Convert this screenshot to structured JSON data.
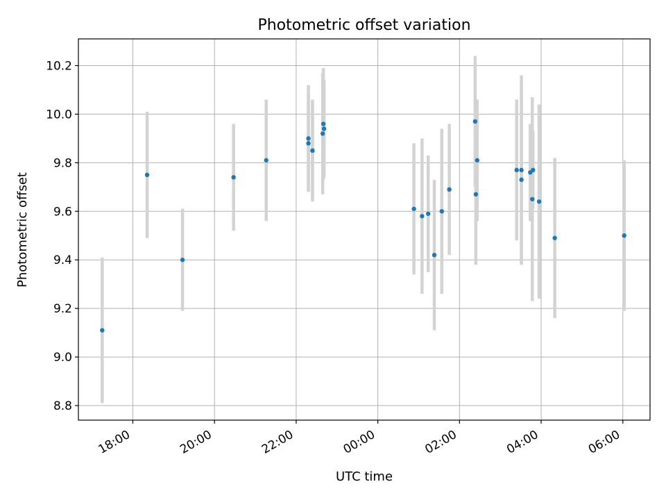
{
  "chart_data": {
    "type": "scatter",
    "title": "Photometric offset variation",
    "xlabel": "UTC time",
    "ylabel": "Photometric offset",
    "x_axis_type": "time",
    "xlim": [
      "2024-01-01 16:40",
      "2024-01-02 06:40"
    ],
    "ylim": [
      8.74,
      10.31
    ],
    "x_ticks": [
      {
        "t": "2024-01-01 18:00",
        "label": "18:00"
      },
      {
        "t": "2024-01-01 20:00",
        "label": "20:00"
      },
      {
        "t": "2024-01-01 22:00",
        "label": "22:00"
      },
      {
        "t": "2024-01-02 00:00",
        "label": "00:00"
      },
      {
        "t": "2024-01-02 02:00",
        "label": "02:00"
      },
      {
        "t": "2024-01-02 04:00",
        "label": "04:00"
      },
      {
        "t": "2024-01-02 06:00",
        "label": "06:00"
      }
    ],
    "y_ticks": [
      8.8,
      9.0,
      9.2,
      9.4,
      9.6,
      9.8,
      10.0,
      10.2
    ],
    "y_tick_labels": [
      "8.8",
      "9.0",
      "9.2",
      "9.4",
      "9.6",
      "9.8",
      "10.0",
      "10.2"
    ],
    "grid": true,
    "point_color": "#1f77b4",
    "errorbar_color": "#d3d3d3",
    "points": [
      {
        "t": "2024-01-01 17:15",
        "y": 9.11,
        "err": 0.3
      },
      {
        "t": "2024-01-01 18:21",
        "y": 9.75,
        "err": 0.26
      },
      {
        "t": "2024-01-01 19:13",
        "y": 9.4,
        "err": 0.21
      },
      {
        "t": "2024-01-01 20:28",
        "y": 9.74,
        "err": 0.22
      },
      {
        "t": "2024-01-01 21:16",
        "y": 9.81,
        "err": 0.25
      },
      {
        "t": "2024-01-01 22:18",
        "y": 9.9,
        "err": 0.22
      },
      {
        "t": "2024-01-01 22:18",
        "y": 9.88,
        "err": 0.2
      },
      {
        "t": "2024-01-01 22:24",
        "y": 9.85,
        "err": 0.21
      },
      {
        "t": "2024-01-01 22:24",
        "y": 9.85,
        "err": 0.2
      },
      {
        "t": "2024-01-01 22:39",
        "y": 9.92,
        "err": 0.25
      },
      {
        "t": "2024-01-01 22:40",
        "y": 9.96,
        "err": 0.23
      },
      {
        "t": "2024-01-01 22:41",
        "y": 9.94,
        "err": 0.2
      },
      {
        "t": "2024-01-02 00:53",
        "y": 9.61,
        "err": 0.27
      },
      {
        "t": "2024-01-02 01:05",
        "y": 9.58,
        "err": 0.32
      },
      {
        "t": "2024-01-02 01:14",
        "y": 9.59,
        "err": 0.24
      },
      {
        "t": "2024-01-02 01:23",
        "y": 9.42,
        "err": 0.31
      },
      {
        "t": "2024-01-02 01:34",
        "y": 9.6,
        "err": 0.34
      },
      {
        "t": "2024-01-02 01:45",
        "y": 9.69,
        "err": 0.27
      },
      {
        "t": "2024-01-02 02:23",
        "y": 9.97,
        "err": 0.27
      },
      {
        "t": "2024-01-02 02:26",
        "y": 9.81,
        "err": 0.25
      },
      {
        "t": "2024-01-02 02:24",
        "y": 9.67,
        "err": 0.29
      },
      {
        "t": "2024-01-02 03:24",
        "y": 9.77,
        "err": 0.29
      },
      {
        "t": "2024-01-02 03:31",
        "y": 9.77,
        "err": 0.39
      },
      {
        "t": "2024-01-02 03:31",
        "y": 9.73,
        "err": 0.35
      },
      {
        "t": "2024-01-02 03:44",
        "y": 9.76,
        "err": 0.2
      },
      {
        "t": "2024-01-02 03:47",
        "y": 9.65,
        "err": 0.42
      },
      {
        "t": "2024-01-02 03:48",
        "y": 9.77,
        "err": 0.16
      },
      {
        "t": "2024-01-02 03:57",
        "y": 9.64,
        "err": 0.4
      },
      {
        "t": "2024-01-02 04:20",
        "y": 9.49,
        "err": 0.33
      },
      {
        "t": "2024-01-02 06:02",
        "y": 9.5,
        "err": 0.31
      }
    ]
  }
}
